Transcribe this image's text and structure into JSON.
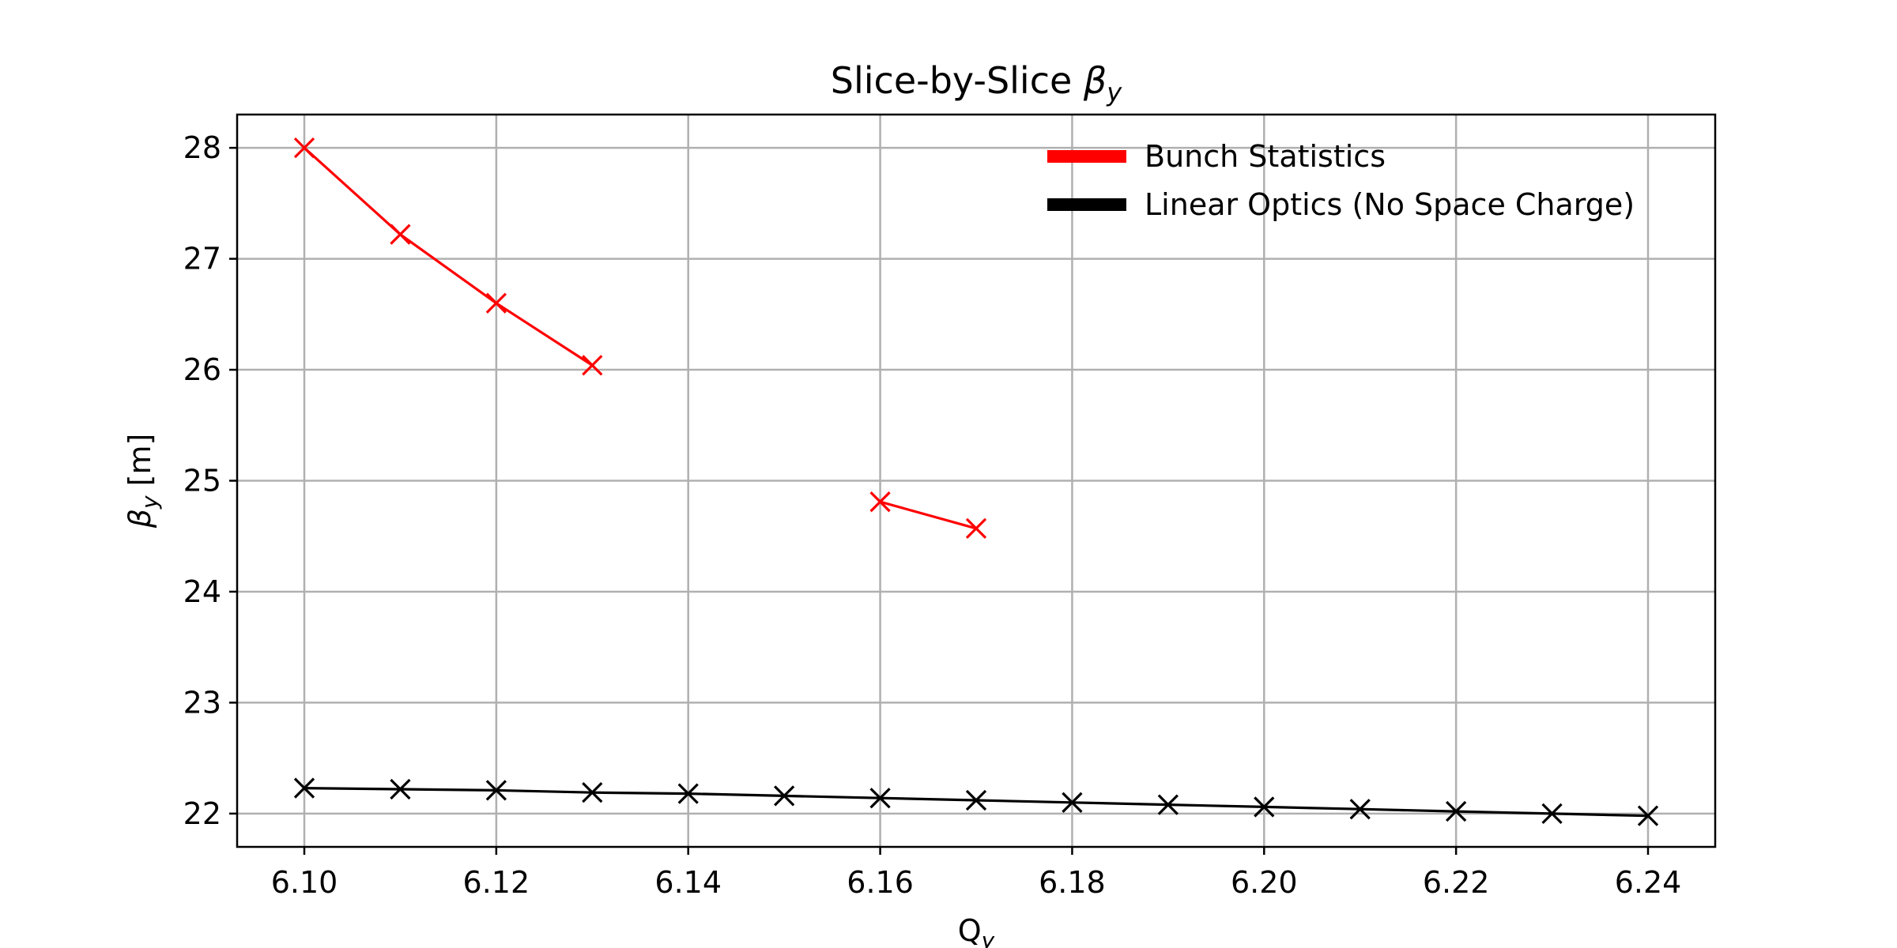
{
  "chart_data": {
    "type": "line",
    "title": "Slice-by-Slice",
    "title_math": "β",
    "title_math_sub": "y",
    "xlabel": "Q",
    "xlabel_sub": "y",
    "ylabel_math": "β",
    "ylabel_sub": "y",
    "ylabel_rest": " [m]",
    "xlim": [
      6.093,
      6.247
    ],
    "ylim": [
      21.7,
      28.3
    ],
    "xticks": [
      6.1,
      6.12,
      6.14,
      6.16,
      6.18,
      6.2,
      6.22,
      6.24
    ],
    "xtick_labels": [
      "6.10",
      "6.12",
      "6.14",
      "6.16",
      "6.18",
      "6.20",
      "6.22",
      "6.24"
    ],
    "yticks": [
      22,
      23,
      24,
      25,
      26,
      27,
      28
    ],
    "ytick_labels": [
      "22",
      "23",
      "24",
      "25",
      "26",
      "27",
      "28"
    ],
    "grid": true,
    "legend_position": "top-right",
    "series": [
      {
        "name": "Bunch Statistics",
        "color": "#ff0000",
        "marker": "x",
        "segments": [
          [
            [
              6.1,
              28.0
            ],
            [
              6.11,
              27.22
            ],
            [
              6.12,
              26.6
            ],
            [
              6.13,
              26.04
            ]
          ],
          [
            [
              6.16,
              24.81
            ],
            [
              6.17,
              24.57
            ]
          ]
        ]
      },
      {
        "name": "Linear Optics (No Space Charge)",
        "color": "#000000",
        "marker": "x",
        "segments": [
          [
            [
              6.1,
              22.23
            ],
            [
              6.11,
              22.22
            ],
            [
              6.12,
              22.21
            ],
            [
              6.13,
              22.19
            ],
            [
              6.14,
              22.18
            ],
            [
              6.15,
              22.16
            ],
            [
              6.16,
              22.14
            ],
            [
              6.17,
              22.12
            ],
            [
              6.18,
              22.1
            ],
            [
              6.19,
              22.08
            ],
            [
              6.2,
              22.06
            ],
            [
              6.21,
              22.04
            ],
            [
              6.22,
              22.02
            ],
            [
              6.23,
              22.0
            ],
            [
              6.24,
              21.98
            ]
          ]
        ]
      }
    ]
  }
}
